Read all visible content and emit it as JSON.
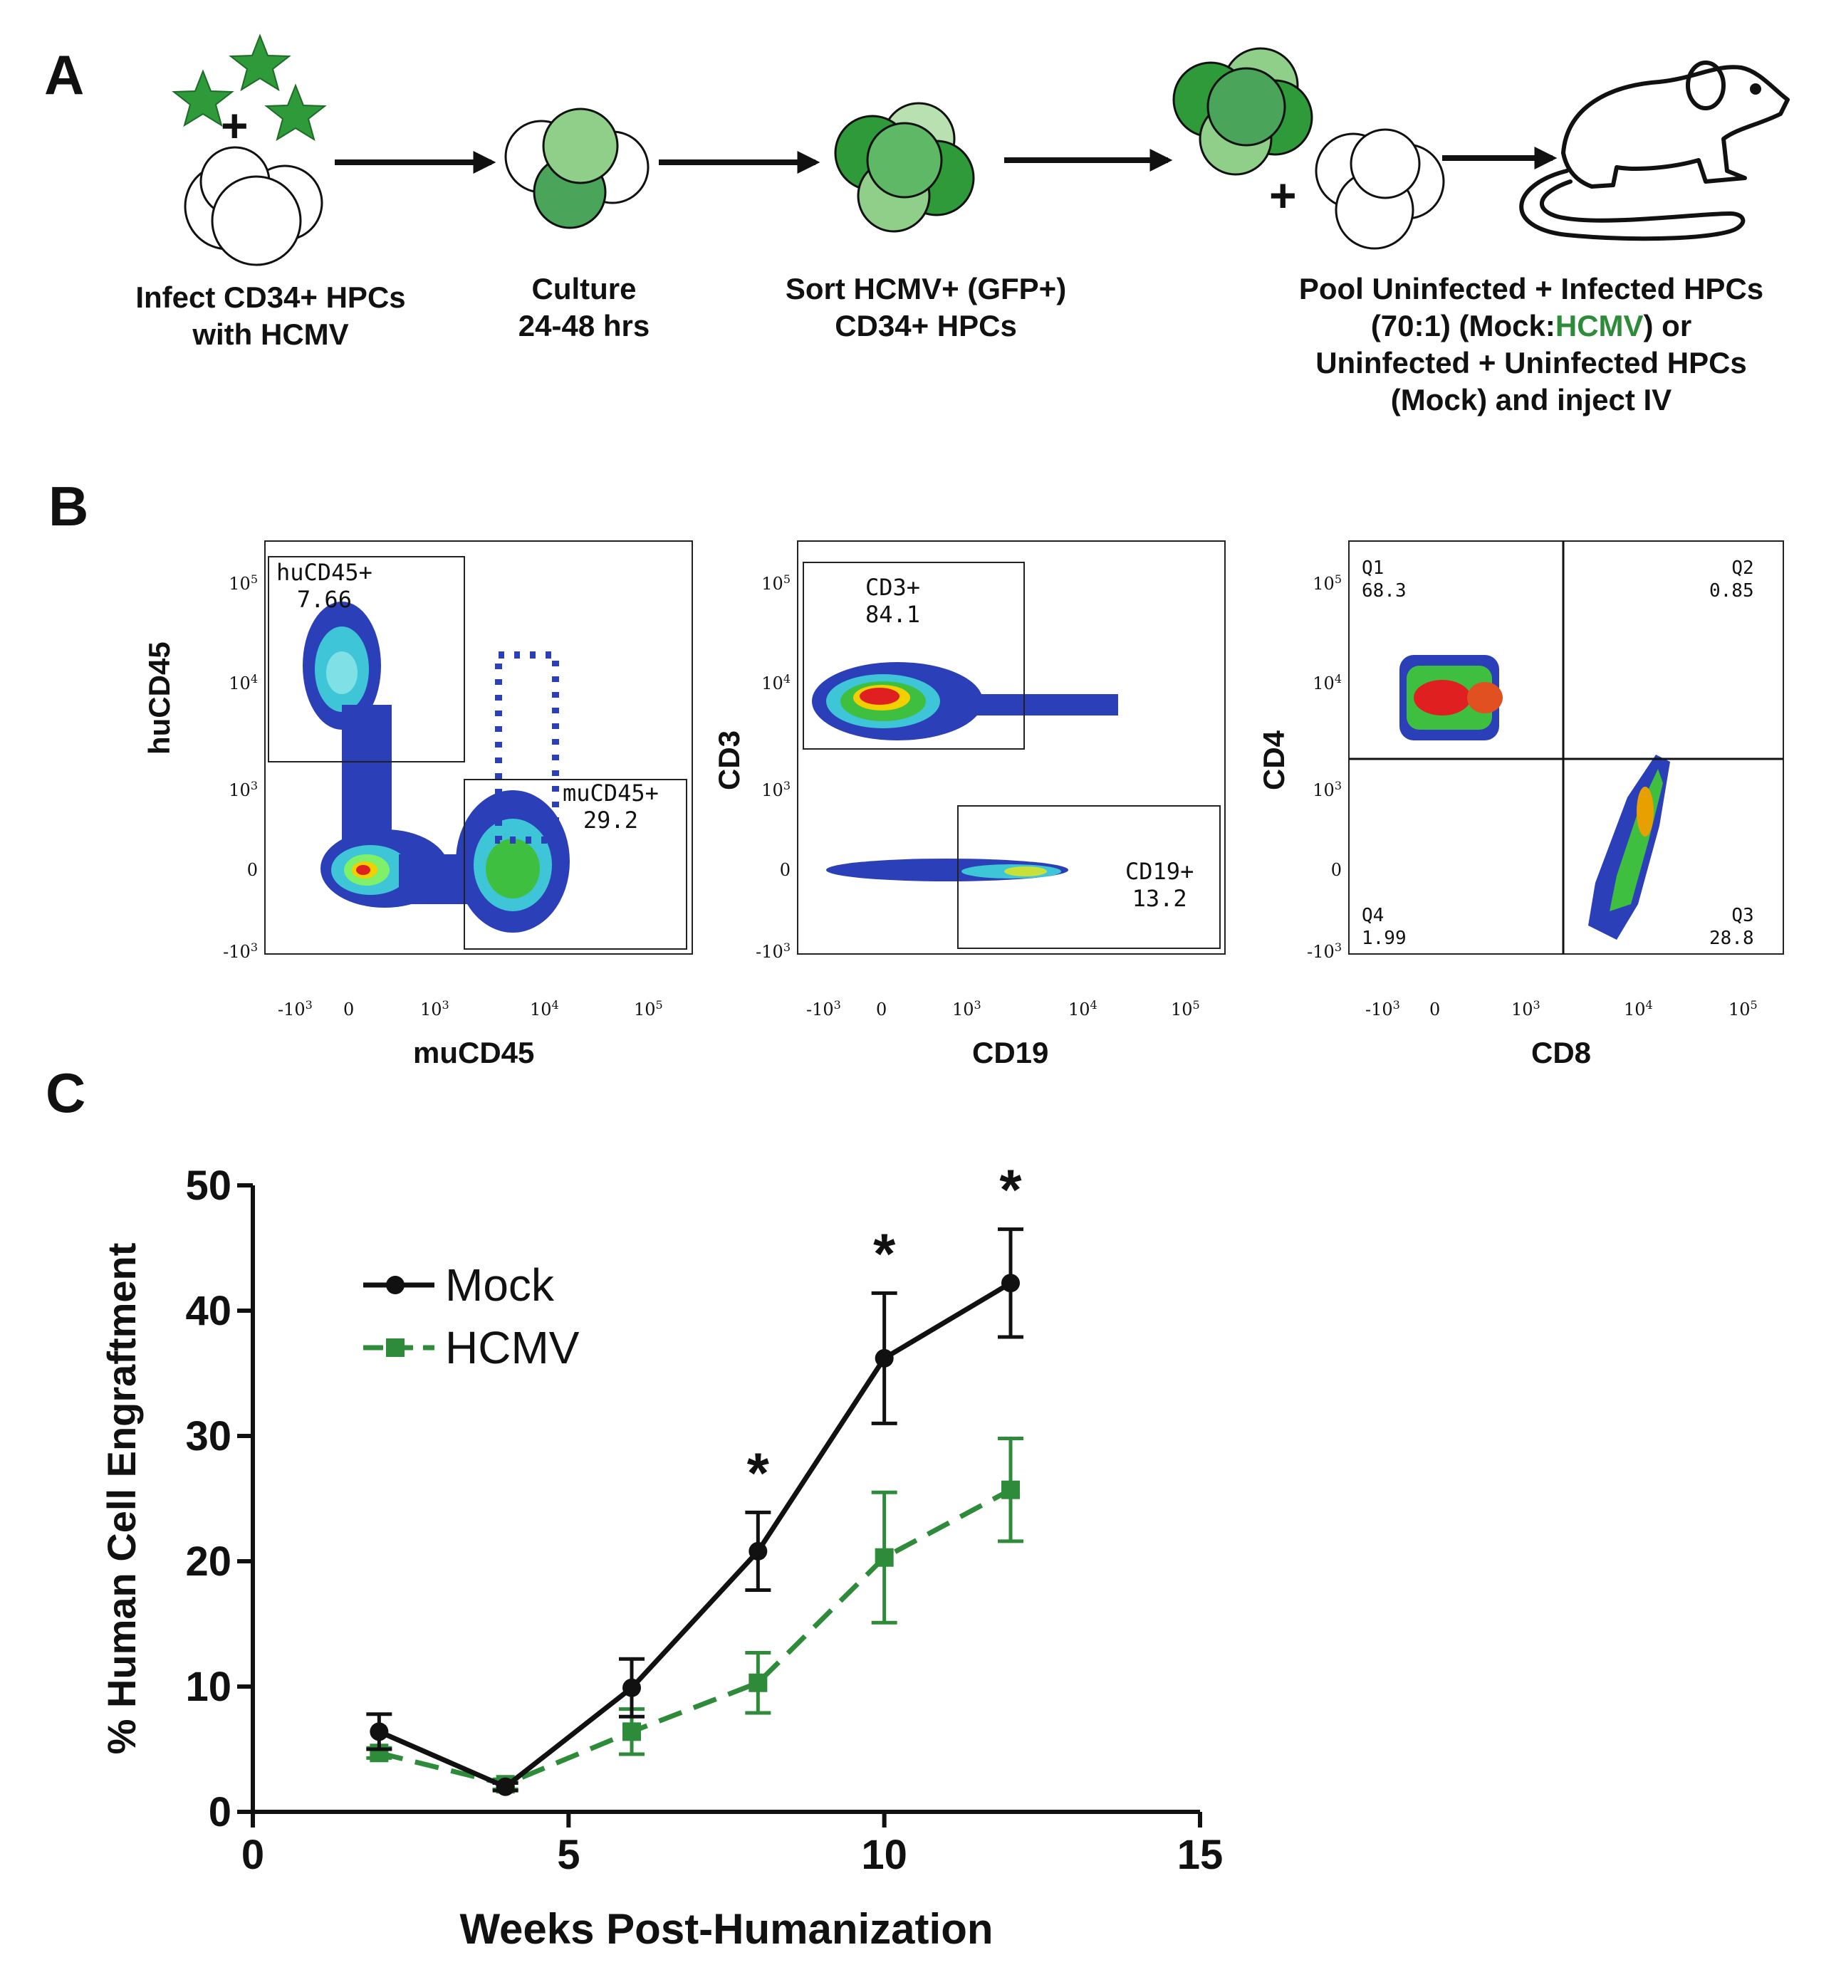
{
  "panels": {
    "a": "A",
    "b": "B",
    "c": "C"
  },
  "workflow": {
    "steps": [
      {
        "line1": "Infect CD34+ HPCs",
        "line2": "with HCMV"
      },
      {
        "line1": "Culture",
        "line2": "24-48 hrs"
      },
      {
        "line1": "Sort HCMV+ (GFP+)",
        "line2": "CD34+ HPCs"
      }
    ],
    "final": {
      "line1": "Pool Uninfected + Infected HPCs",
      "line2_pre": "(70:1) (Mock:",
      "line2_hl": "HCMV",
      "line2_post": ") or",
      "line3": "Uninfected + Uninfected HPCs",
      "line4": "(Mock) and inject IV"
    },
    "plus": "+"
  },
  "flow": {
    "plot1": {
      "xlabel": "muCD45",
      "ylabel": "huCD45",
      "gate1_name": "huCD45+",
      "gate1_value": "7.66",
      "gate2_name": "muCD45+",
      "gate2_value": "29.2"
    },
    "plot2": {
      "xlabel": "CD19",
      "ylabel": "CD3",
      "gate1_name": "CD3+",
      "gate1_value": "84.1",
      "gate2_name": "CD19+",
      "gate2_value": "13.2"
    },
    "plot3": {
      "xlabel": "CD8",
      "ylabel": "CD4",
      "q1_name": "Q1",
      "q1_value": "68.3",
      "q2_name": "Q2",
      "q2_value": "0.85",
      "q3_name": "Q3",
      "q3_value": "28.8",
      "q4_name": "Q4",
      "q4_value": "1.99"
    },
    "xticks": [
      "-10",
      "0",
      "10",
      "10",
      "10"
    ],
    "xtick_exp": [
      "3",
      "",
      "3",
      "4",
      "5"
    ],
    "yticks": [
      "-10",
      "0",
      "10",
      "10",
      "10"
    ],
    "ytick_exp": [
      "3",
      "",
      "3",
      "4",
      "5"
    ]
  },
  "chart_data": {
    "type": "line",
    "xlabel": "Weeks Post-Humanization",
    "ylabel": "% Human Cell Engraftment",
    "xlim": [
      0,
      15
    ],
    "ylim": [
      0,
      50
    ],
    "xticks": [
      0,
      5,
      10,
      15
    ],
    "yticks": [
      0,
      10,
      20,
      30,
      40,
      50
    ],
    "x": [
      2,
      4,
      6,
      8,
      10,
      12
    ],
    "series": [
      {
        "name": "Mock",
        "color": "#111111",
        "marker": "circle",
        "dash": "solid",
        "values": [
          6.4,
          2.0,
          9.9,
          20.8,
          36.2,
          42.2
        ],
        "errors": [
          1.4,
          0.3,
          2.3,
          3.1,
          5.2,
          4.3
        ]
      },
      {
        "name": "HCMV",
        "color": "#2e8b3a",
        "marker": "square",
        "dash": "dashed",
        "values": [
          4.7,
          2.2,
          6.4,
          10.3,
          20.3,
          25.7
        ],
        "errors": [
          0.4,
          0.4,
          1.8,
          2.4,
          5.2,
          4.1
        ]
      }
    ],
    "significance": {
      "symbol": "*",
      "x": [
        8,
        10,
        12
      ]
    },
    "legend": "upper-left"
  }
}
